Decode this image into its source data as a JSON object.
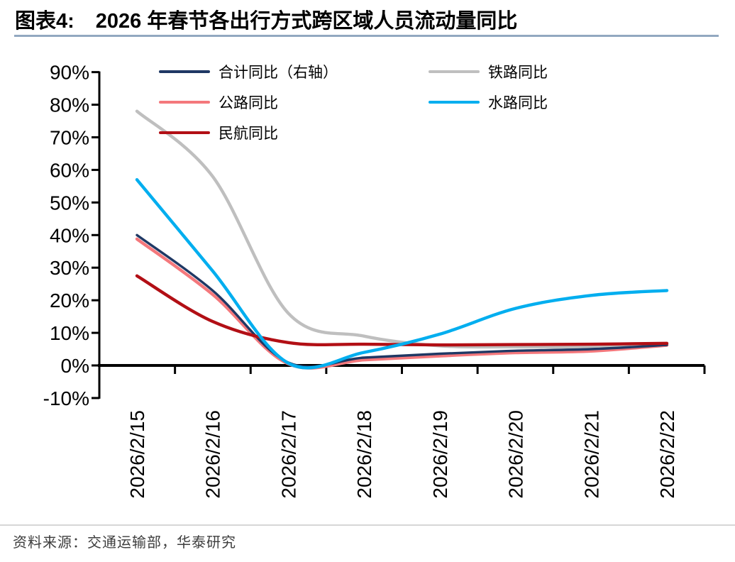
{
  "header": {
    "chart_label": "图表4:",
    "title": "2026 年春节各出行方式跨区域人员流动量同比"
  },
  "legend": {
    "items": [
      {
        "label": "合计同比（右轴）",
        "series": 0
      },
      {
        "label": "铁路同比",
        "series": 3
      },
      {
        "label": "公路同比",
        "series": 1
      },
      {
        "label": "水路同比",
        "series": 4
      },
      {
        "label": "民航同比",
        "series": 2
      }
    ]
  },
  "chart_data": {
    "type": "line",
    "title": "2026 年春节各出行方式跨区域人员流动量同比",
    "categories": [
      "2026/2/15",
      "2026/2/16",
      "2026/2/17",
      "2026/2/18",
      "2026/2/19",
      "2026/2/20",
      "2026/2/21",
      "2026/2/22"
    ],
    "series": [
      {
        "name": "合计同比（右轴）",
        "axis": "right",
        "color": "#1F3864",
        "values": [
          40,
          23,
          0.9,
          2.4,
          3.6,
          4.5,
          5.0,
          6.3
        ]
      },
      {
        "name": "公路同比",
        "axis": "left",
        "color": "#F4787C",
        "values": [
          38.8,
          21.8,
          0.5,
          1.7,
          2.9,
          3.9,
          4.4,
          6.2
        ]
      },
      {
        "name": "民航同比",
        "axis": "left",
        "color": "#B20F15",
        "values": [
          27.5,
          13.5,
          7.0,
          6.5,
          6.3,
          6.4,
          6.5,
          6.8
        ]
      },
      {
        "name": "铁路同比",
        "axis": "left",
        "color": "#BFBFBF",
        "values": [
          78,
          58,
          16,
          9,
          6.0,
          5.7,
          5.7,
          6.4
        ]
      },
      {
        "name": "水路同比",
        "axis": "left",
        "color": "#00AEEF",
        "values": [
          57,
          29,
          0.7,
          4.0,
          9.6,
          17.5,
          21.5,
          23
        ]
      }
    ],
    "xlabel": "",
    "ylabel": "",
    "ylim": [
      -10,
      90
    ],
    "ytick_step": 10,
    "ytick_suffix": "%",
    "grid": false,
    "smooth": true,
    "legend_position": "top-inside-two-columns",
    "axis_color": "#000000"
  },
  "footer": {
    "source": "资料来源：交通运输部，华泰研究"
  }
}
